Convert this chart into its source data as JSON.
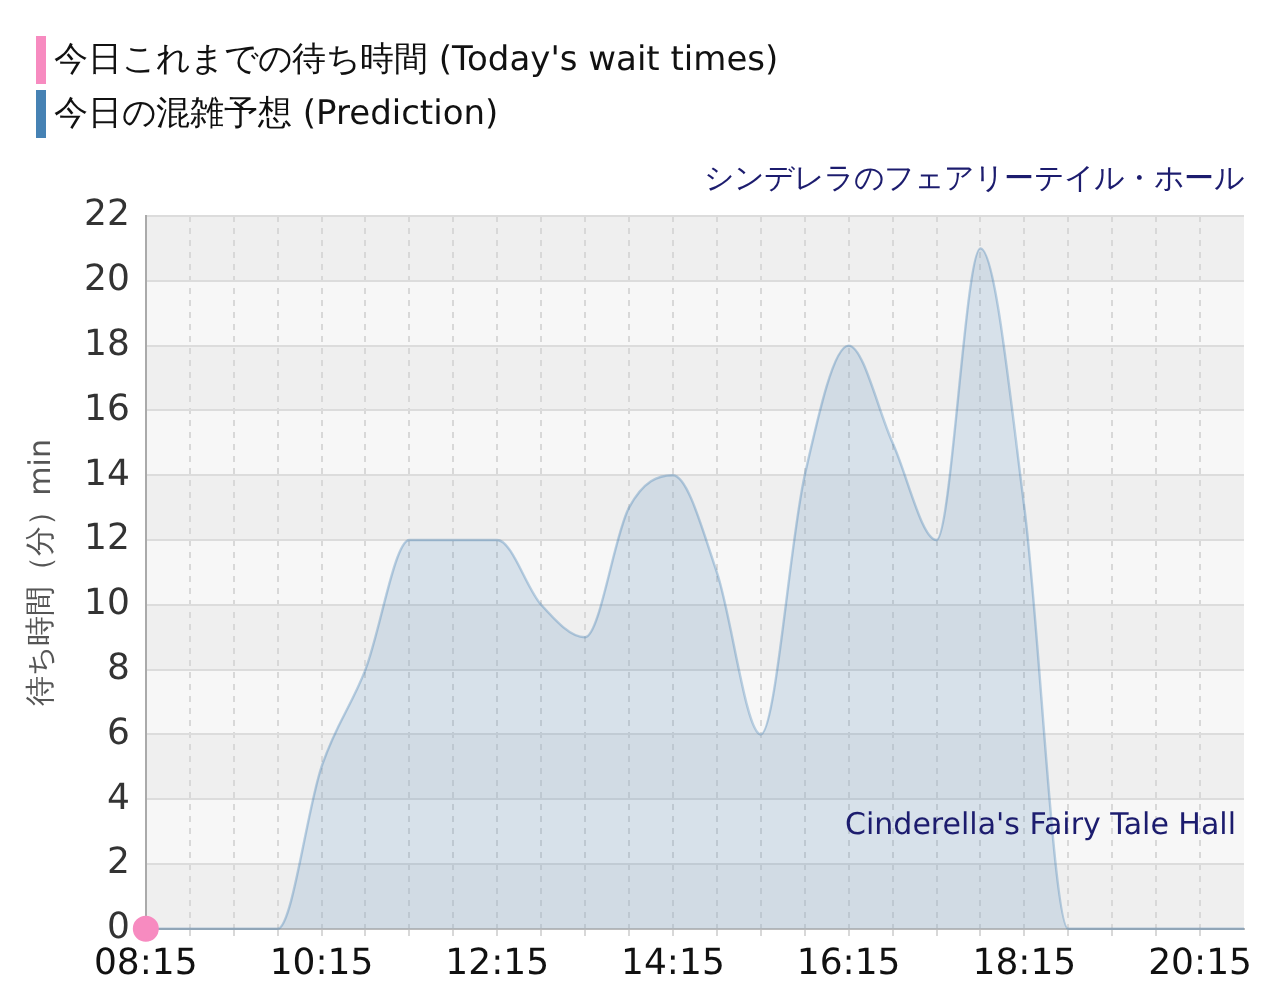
{
  "chart_data": {
    "type": "area",
    "subtitle": "シンデレラのフェアリーテイル・ホール",
    "ylabel": "待ち時間（分）min",
    "annotations": [
      "Cinderella's Fairy Tale Hall"
    ],
    "x": [
      8.25,
      8.75,
      9.25,
      9.75,
      10.25,
      10.75,
      11.25,
      11.75,
      12.25,
      12.75,
      13.25,
      13.75,
      14.25,
      14.75,
      15.25,
      15.75,
      16.25,
      16.75,
      17.25,
      17.75,
      18.25,
      18.75,
      19.25,
      19.75,
      20.25,
      20.75
    ],
    "series": [
      {
        "name": "今日これまでの待ち時間 (Today's wait times)",
        "type": "scatter",
        "color": "#f78bc0",
        "x": [
          8.25
        ],
        "values": [
          0
        ]
      },
      {
        "name": "今日の混雑予想 (Prediction)",
        "color": "#4682b4",
        "values": [
          0,
          0,
          0,
          0,
          5,
          8,
          12,
          12,
          12,
          10,
          9,
          13,
          14,
          11,
          6,
          14,
          18,
          15,
          12,
          21,
          13,
          0,
          0,
          0,
          0,
          0
        ]
      }
    ],
    "xlim": [
      8.25,
      20.75
    ],
    "xticks": [
      {
        "value": 8.25,
        "label": "08:15"
      },
      {
        "value": 8.75,
        "label": null
      },
      {
        "value": 9.25,
        "label": null
      },
      {
        "value": 9.75,
        "label": null
      },
      {
        "value": 10.25,
        "label": "10:15"
      },
      {
        "value": 10.75,
        "label": null
      },
      {
        "value": 11.25,
        "label": null
      },
      {
        "value": 11.75,
        "label": null
      },
      {
        "value": 12.25,
        "label": "12:15"
      },
      {
        "value": 12.75,
        "label": null
      },
      {
        "value": 13.25,
        "label": null
      },
      {
        "value": 13.75,
        "label": null
      },
      {
        "value": 14.25,
        "label": "14:15"
      },
      {
        "value": 14.75,
        "label": null
      },
      {
        "value": 15.25,
        "label": null
      },
      {
        "value": 15.75,
        "label": null
      },
      {
        "value": 16.25,
        "label": "16:15"
      },
      {
        "value": 16.75,
        "label": null
      },
      {
        "value": 17.25,
        "label": null
      },
      {
        "value": 17.75,
        "label": null
      },
      {
        "value": 18.25,
        "label": "18:15"
      },
      {
        "value": 18.75,
        "label": null
      },
      {
        "value": 19.25,
        "label": null
      },
      {
        "value": 19.75,
        "label": null
      },
      {
        "value": 20.25,
        "label": "20:15"
      }
    ],
    "ylim": [
      0,
      22
    ],
    "yticks": [
      0,
      2,
      4,
      6,
      8,
      10,
      12,
      14,
      16,
      18,
      20,
      22
    ],
    "grid": true,
    "legend": "top left"
  }
}
